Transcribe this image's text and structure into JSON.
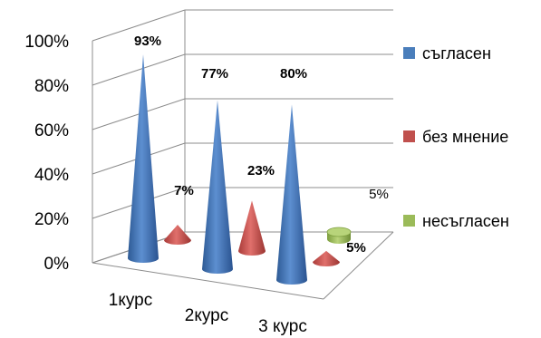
{
  "chart_data": {
    "type": "bar",
    "style": "3d-cone",
    "categories": [
      "1курс",
      "2курс",
      "3 курс"
    ],
    "series": [
      {
        "name": "съгласен",
        "values": [
          93,
          77,
          80
        ],
        "color": "#4a7ebb",
        "label_format": "bold"
      },
      {
        "name": "без мнение",
        "values": [
          7,
          23,
          5
        ],
        "color": "#c0504d",
        "label_format": "bold"
      },
      {
        "name": "несъгласен",
        "values": [
          null,
          null,
          5
        ],
        "color": "#9bbb59",
        "label_format": "plain"
      }
    ],
    "ylim": [
      0,
      100
    ],
    "y_ticks": [
      "0%",
      "20%",
      "40%",
      "60%",
      "80%",
      "100%"
    ],
    "legend_position": "right",
    "grid": true
  }
}
